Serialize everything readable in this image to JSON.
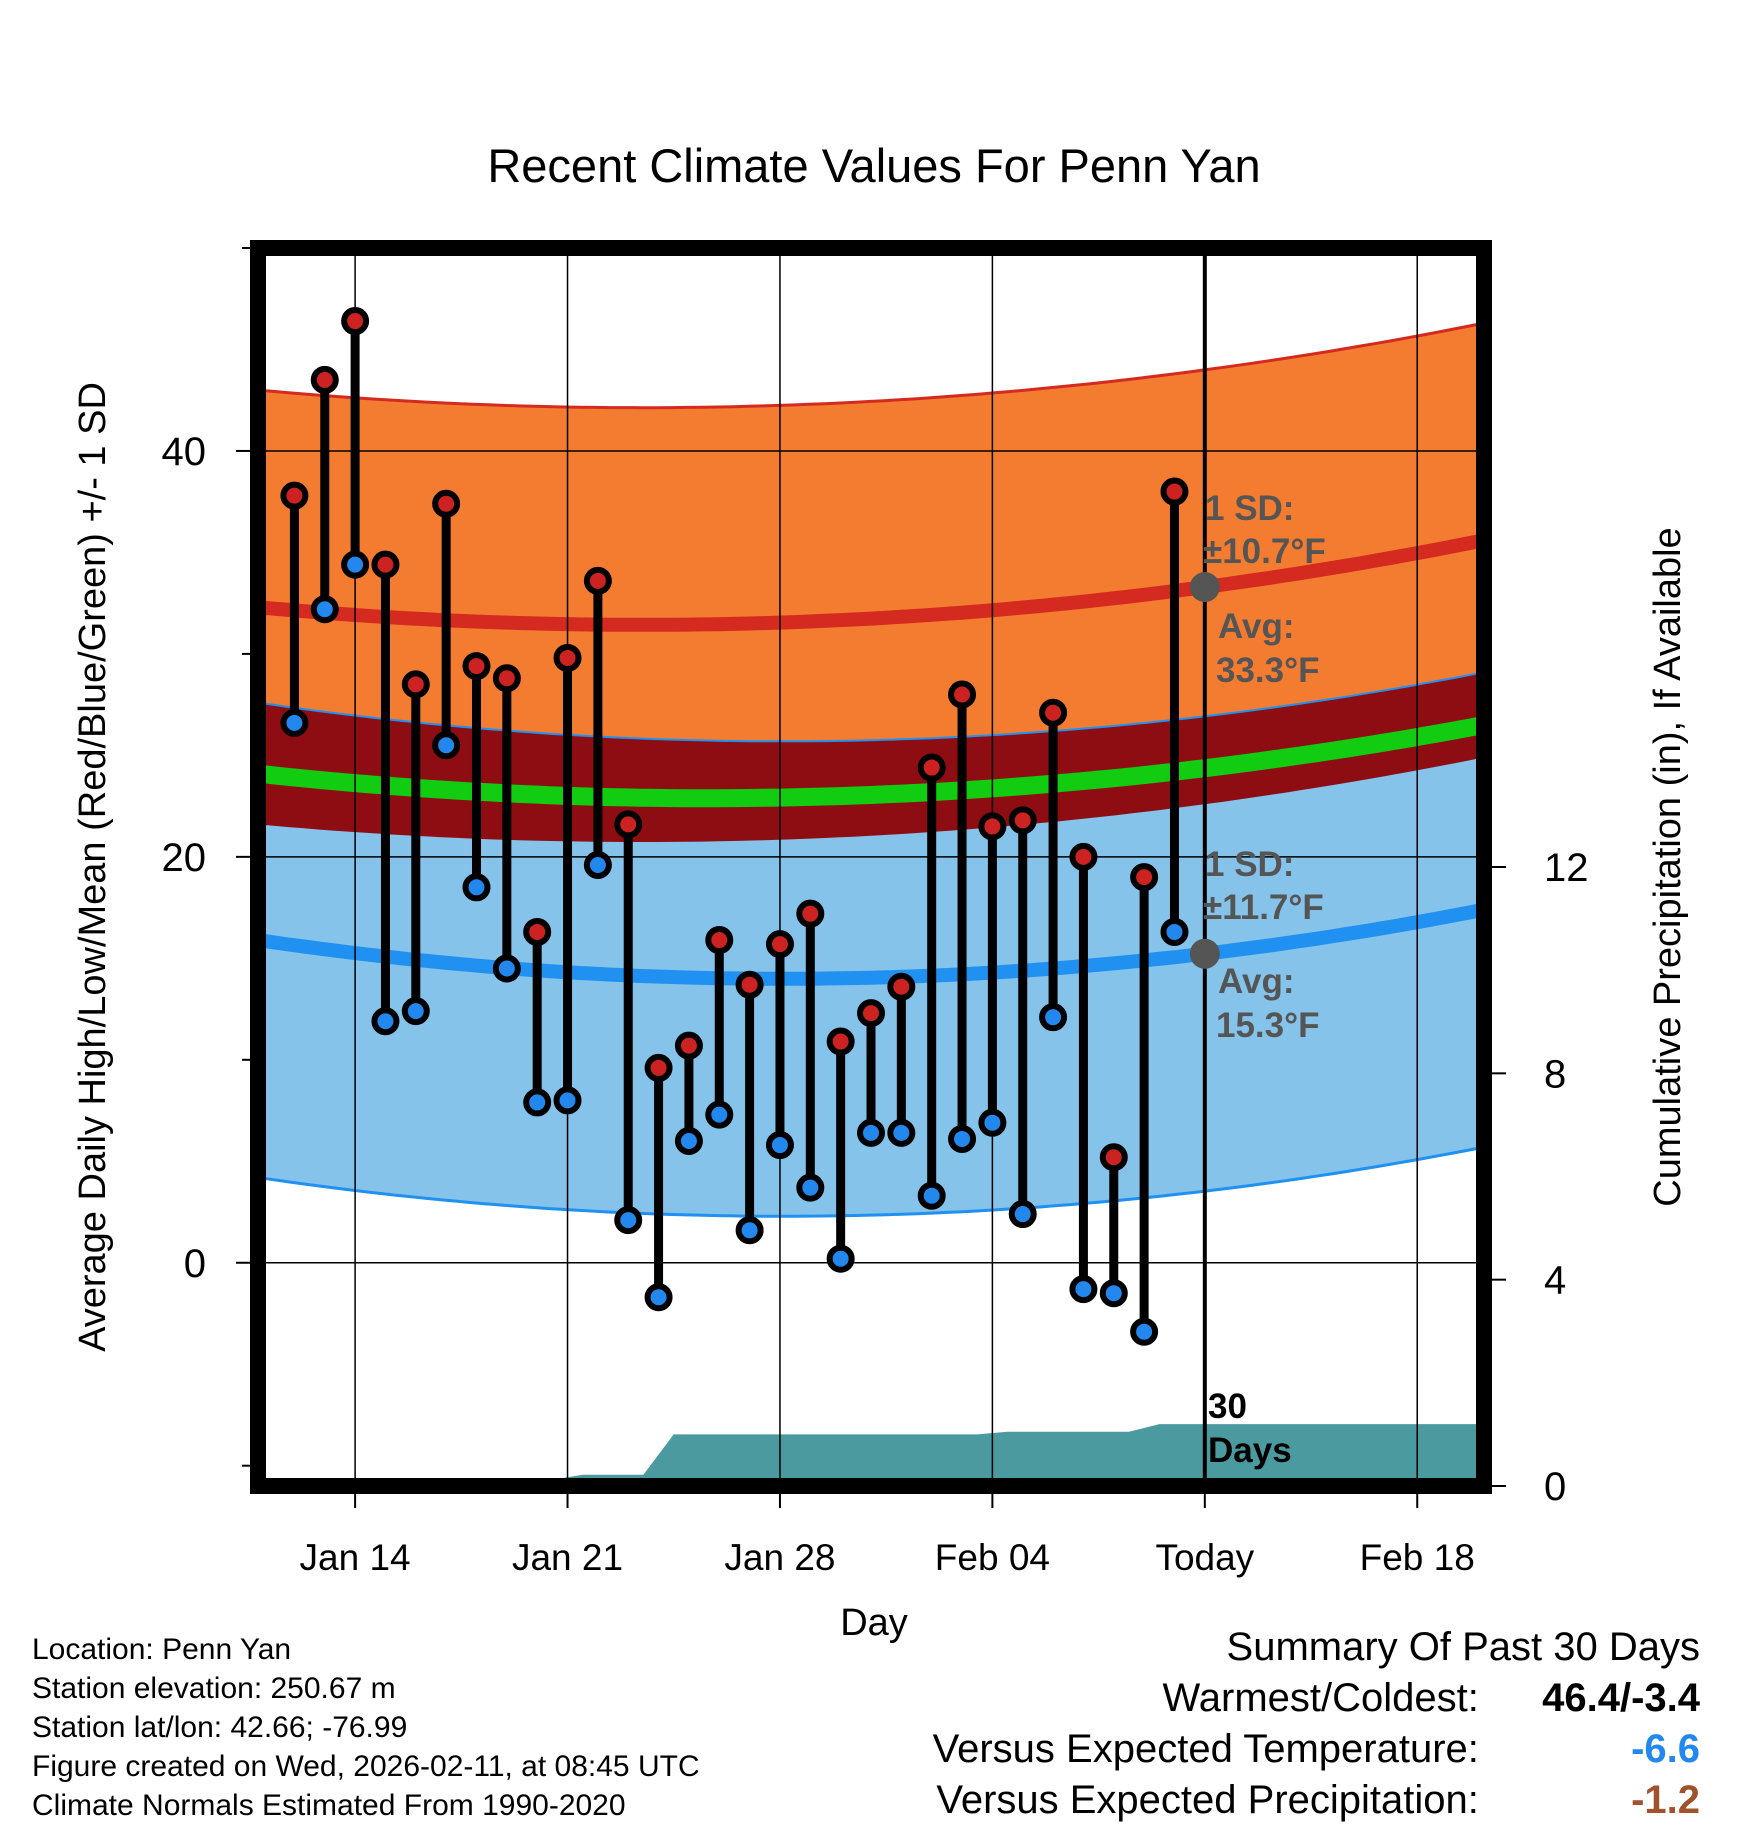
{
  "chart_data": {
    "type": "line",
    "title": "Recent Climate Values For Penn Yan",
    "xlabel": "Day",
    "ylabel": "Average Daily High/Low/Mean (Red/Blue/Green) +/- 1 SD",
    "y2label": "Cumulative Precipitation (in), If Available",
    "x_ticks": [
      {
        "day": 14,
        "label": "Jan 14"
      },
      {
        "day": 21,
        "label": "Jan 21"
      },
      {
        "day": 28,
        "label": "Jan 28"
      },
      {
        "day": 35,
        "label": "Feb 04"
      },
      {
        "day": 42,
        "label": "Today"
      },
      {
        "day": 49,
        "label": "Feb 18"
      }
    ],
    "y_ticks": [
      0,
      20,
      40
    ],
    "y2_ticks": [
      0,
      4,
      8,
      12
    ],
    "xlim": [
      10.8,
      51.2
    ],
    "ylim": [
      -11,
      50
    ],
    "y2lim": [
      0,
      24
    ],
    "normals": {
      "high_avg_start": 32.3,
      "high_avg_min": 31.5,
      "high_avg_end": 35.6,
      "low_avg_start": 15.9,
      "low_avg_min": 14.0,
      "low_avg_end": 17.4,
      "mean_avg_start": 24.1,
      "mean_avg_min": 22.9,
      "mean_avg_end": 26.5,
      "high_sd": 10.7,
      "low_sd": 11.7
    },
    "series": [
      {
        "name": "High",
        "color": "#cc2222",
        "values": [
          37.8,
          43.5,
          46.4,
          34.4,
          28.5,
          37.4,
          29.4,
          28.8,
          16.3,
          29.8,
          33.6,
          21.6,
          9.6,
          10.7,
          15.9,
          13.7,
          15.7,
          17.2,
          10.9,
          12.3,
          13.6,
          24.4,
          28.0,
          21.5,
          21.8,
          27.1,
          20.0,
          5.2,
          19.0,
          38.0
        ]
      },
      {
        "name": "Low",
        "color": "#2288ee",
        "values": [
          26.6,
          32.2,
          34.4,
          11.9,
          12.4,
          25.5,
          18.5,
          14.5,
          7.9,
          8.0,
          19.6,
          2.1,
          -1.7,
          6.0,
          7.3,
          1.6,
          5.8,
          3.7,
          0.2,
          6.4,
          6.4,
          3.3,
          6.1,
          6.9,
          2.4,
          12.1,
          -1.3,
          -1.5,
          -3.4,
          16.3
        ]
      },
      {
        "name": "Cumulative Precipitation",
        "color": "#4a9aa0",
        "values": [
          0,
          0,
          0,
          0.12,
          0.12,
          0.12,
          0.12,
          0.12,
          0.12,
          0.12,
          0.22,
          0.22,
          0.22,
          1.0,
          1.0,
          1.0,
          1.0,
          1.0,
          1.0,
          1.0,
          1.0,
          1.0,
          1.0,
          1.0,
          1.05,
          1.05,
          1.05,
          1.05,
          1.05,
          1.2,
          1.2
        ]
      }
    ],
    "annotations": {
      "high_sd_label": "1 SD:",
      "high_sd_value": "±10.7°F",
      "high_avg_label": "Avg:",
      "high_avg_value": "33.3°F",
      "low_sd_label": "1 SD:",
      "low_sd_value": "±11.7°F",
      "low_avg_label": "Avg:",
      "low_avg_value": "15.3°F",
      "days_number": "30",
      "days_word": "Days"
    }
  },
  "info": {
    "location": "Location: Penn Yan",
    "elevation": "Station elevation: 250.67 m",
    "latlon": "Station lat/lon: 42.66; -76.99",
    "created": "Figure created on Wed, 2026-02-11, at 08:45 UTC",
    "normals": "Climate Normals Estimated From 1990-2020"
  },
  "summary": {
    "title": "Summary Of Past 30 Days",
    "warmest_label": "Warmest/Coldest:",
    "warmest_value": "46.4/-3.4",
    "temp_label": "Versus Expected Temperature:",
    "temp_value": "-6.6",
    "temp_color": "#2288ee",
    "precip_label": "Versus Expected Precipitation:",
    "precip_value": "-1.2",
    "precip_color": "#a0522d"
  },
  "colors": {
    "high_band": "#f47c30",
    "high_line": "#d42a20",
    "overlap_band": "#8e0d12",
    "mean_line": "#11cc11",
    "low_band": "#85c3ea",
    "low_line": "#2091f0",
    "precip_fill": "#4a9aa0",
    "annotation_gray": "#555555"
  }
}
